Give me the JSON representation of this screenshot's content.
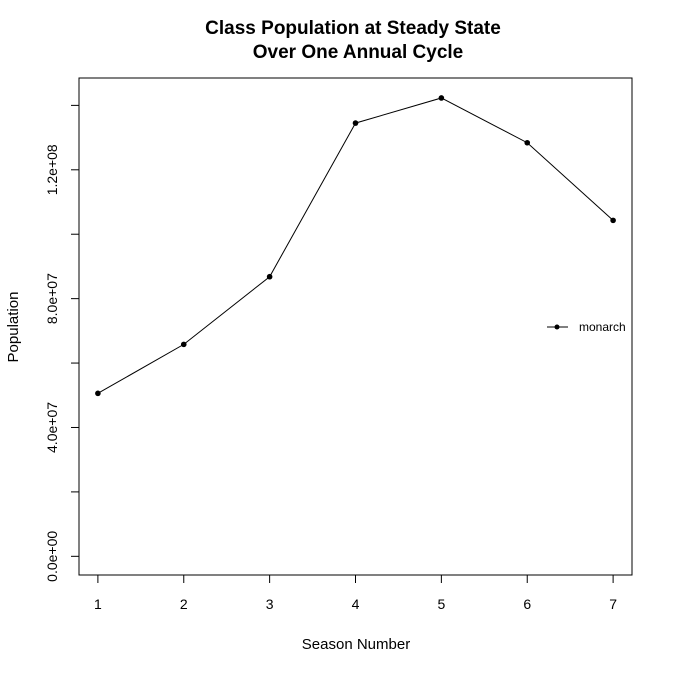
{
  "chart_data": {
    "type": "line",
    "title_lines": [
      "Class Population at Steady State",
      "Over One Annual Cycle"
    ],
    "xlabel": "Season Number",
    "ylabel": "Population",
    "x": [
      1,
      2,
      3,
      4,
      5,
      6,
      7
    ],
    "x_tick_labels": [
      "1",
      "2",
      "3",
      "4",
      "5",
      "6",
      "7"
    ],
    "y_ticks": [
      0,
      20000000,
      40000000,
      60000000,
      80000000,
      100000000,
      120000000,
      140000000
    ],
    "y_tick_labels": [
      "0.0e+00",
      "",
      "4.0e+07",
      "",
      "8.0e+07",
      "",
      "1.2e+08",
      ""
    ],
    "xlim": [
      0.78,
      7.22
    ],
    "ylim": [
      -5800000,
      148500000
    ],
    "series": [
      {
        "name": "monarch",
        "values": [
          50600000,
          65800000,
          86800000,
          134500000,
          142300000,
          128400000,
          104300000
        ],
        "color": "#000000"
      }
    ],
    "legend": {
      "placement": "right"
    },
    "grid": false
  }
}
